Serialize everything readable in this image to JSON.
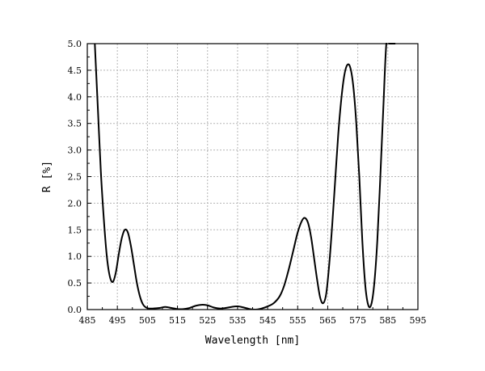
{
  "chart_data": {
    "type": "line",
    "title": "",
    "xlabel": "Wavelength [nm]",
    "ylabel": "R [%]",
    "xlim": [
      485,
      595
    ],
    "ylim": [
      0,
      5
    ],
    "x_ticks": [
      485,
      495,
      505,
      515,
      525,
      535,
      545,
      555,
      565,
      575,
      585,
      595
    ],
    "x_tick_labels": [
      "485",
      "495",
      "505",
      "515",
      "525",
      "535",
      "545",
      "555",
      "565",
      "575",
      "585",
      "595"
    ],
    "y_ticks": [
      0,
      0.5,
      1,
      1.5,
      2,
      2.5,
      3,
      3.5,
      4,
      4.5,
      5
    ],
    "y_tick_labels": [
      "0.0",
      "0.5",
      "1.0",
      "1.5",
      "2.0",
      "2.5",
      "3.0",
      "3.5",
      "4.0",
      "4.5",
      "5.0"
    ],
    "grid": true,
    "legend": "none",
    "line_color": "#000000",
    "series": [
      {
        "x": [
          487.5,
          488.5,
          489.5,
          490.5,
          491.5,
          492.5,
          493.5,
          494.5,
          495.5,
          496.5,
          497.5,
          498.5,
          499.5,
          500.5,
          501.5,
          502.5,
          503.5,
          504.5,
          505.5,
          507,
          509,
          511,
          513,
          515,
          517,
          519,
          521,
          523,
          525,
          527,
          529,
          531,
          533,
          535,
          537,
          539,
          541,
          543,
          545,
          547,
          549,
          550.5,
          552,
          553.5,
          555,
          556.5,
          557.5,
          558.5,
          559.5,
          560.5,
          561.5,
          562.5,
          563.5,
          564.5,
          565.5,
          566.5,
          567.5,
          568.5,
          569.5,
          570.5,
          571.5,
          572.5,
          573.5,
          574.5,
          575.5,
          576.5,
          577.5,
          578.5,
          579.5,
          580.5,
          581.5,
          582.5,
          583.5,
          584.5,
          585.5,
          586.5,
          587.5
        ],
        "y": [
          5.0,
          3.8,
          2.6,
          1.7,
          1.0,
          0.62,
          0.52,
          0.7,
          1.05,
          1.35,
          1.5,
          1.45,
          1.2,
          0.85,
          0.5,
          0.25,
          0.1,
          0.04,
          0.02,
          0.02,
          0.03,
          0.05,
          0.03,
          0.01,
          0.01,
          0.03,
          0.07,
          0.09,
          0.08,
          0.04,
          0.02,
          0.03,
          0.05,
          0.06,
          0.04,
          0.01,
          0.0,
          0.02,
          0.06,
          0.12,
          0.25,
          0.45,
          0.75,
          1.1,
          1.45,
          1.68,
          1.72,
          1.62,
          1.35,
          0.95,
          0.55,
          0.22,
          0.12,
          0.3,
          0.85,
          1.6,
          2.45,
          3.3,
          3.95,
          4.4,
          4.6,
          4.55,
          4.2,
          3.5,
          2.5,
          1.3,
          0.45,
          0.08,
          0.1,
          0.5,
          1.3,
          2.5,
          3.8,
          5.0,
          5.0,
          5.0,
          5.0
        ]
      }
    ]
  }
}
